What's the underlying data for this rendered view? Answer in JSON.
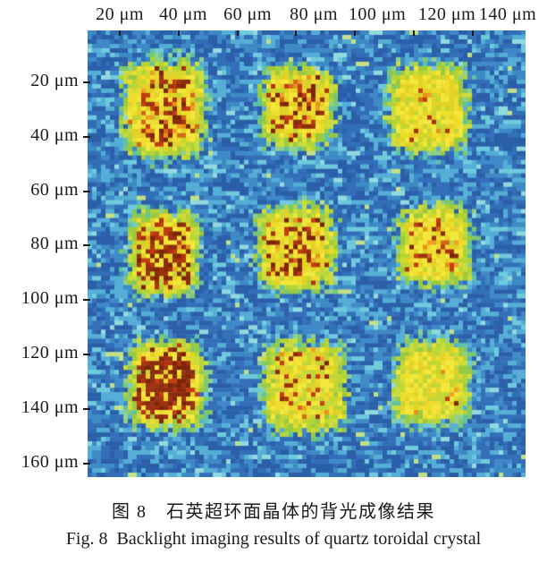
{
  "figure": {
    "caption_zh": "图 8　石英超环面晶体的背光成像结果",
    "caption_en": "Fig. 8  Backlight imaging results of quartz toroidal crystal"
  },
  "chart_data": {
    "type": "heatmap",
    "title": "Backlight imaging results of quartz toroidal crystal",
    "description": "Noisy blue CCD background with a 3x3 array of warm (yellow to dark red) square regions corresponding to toroidal crystal structures",
    "x_axis": {
      "position": "top",
      "unit": "μm",
      "tick_labels": [
        "20 μm",
        "40 μm",
        "60 μm",
        "80 μm",
        "100 μm",
        "120 μm",
        "140 μm"
      ],
      "tick_values_um": [
        20,
        40,
        60,
        80,
        100,
        120,
        140
      ],
      "range_um": [
        9,
        158
      ]
    },
    "y_axis": {
      "position": "left",
      "unit": "μm",
      "tick_labels": [
        "20 μm",
        "40 μm",
        "60 μm",
        "80 μm",
        "100 μm",
        "120 μm",
        "140 μm",
        "160 μm"
      ],
      "tick_values_um": [
        20,
        40,
        60,
        80,
        100,
        120,
        140,
        160
      ],
      "range_um": [
        1,
        165
      ]
    },
    "colormap": "jet-like: blue noise background, yellow blob bodies, orange/red/dark-red hotspots",
    "palette": {
      "background_blues": [
        "#2b5fa9",
        "#336fb8",
        "#3f8ac6",
        "#55aed6",
        "#6fcade",
        "#93dade"
      ],
      "background_weights": [
        0.26,
        0.24,
        0.22,
        0.17,
        0.08,
        0.03
      ],
      "rare_speck": "#c2e087",
      "body_yellows": [
        "#eedd2d",
        "#f3e73b",
        "#e3d226"
      ],
      "mottle_green": "#c2d634",
      "edge_greens": [
        "#b2d437",
        "#9aca40",
        "#ccdc3a"
      ],
      "halo_greens": [
        "#7cc86e",
        "#5fc3a4",
        "#8fd08c"
      ],
      "oranges": [
        "#e8921c",
        "#d2691b",
        "#ef9f24"
      ],
      "reds": [
        "#c43d12",
        "#b03410"
      ],
      "dark_reds": [
        "#8a2c0e",
        "#7c2408",
        "#9c3210"
      ],
      "tick_color": "#1b1b1b",
      "text_color": "#1a1a1a"
    },
    "blobs": [
      {
        "row": 1,
        "col": 1,
        "center_um": [
          35,
          29.5
        ],
        "size_um": [
          27,
          34
        ],
        "speckle": 0.5,
        "dark": 0.45,
        "mottle": 0.1
      },
      {
        "row": 1,
        "col": 2,
        "center_um": [
          80.5,
          29
        ],
        "size_um": [
          24,
          28
        ],
        "speckle": 0.45,
        "dark": 0.45,
        "mottle": 0.1
      },
      {
        "row": 1,
        "col": 3,
        "center_um": [
          125,
          29.5
        ],
        "size_um": [
          26,
          31
        ],
        "speckle": 0.08,
        "dark": 0.15,
        "mottle": 0.15
      },
      {
        "row": 2,
        "col": 1,
        "center_um": [
          35,
          83
        ],
        "size_um": [
          23,
          30
        ],
        "speckle": 0.62,
        "dark": 0.65,
        "mottle": 0.08
      },
      {
        "row": 2,
        "col": 2,
        "center_um": [
          80,
          81
        ],
        "size_um": [
          26,
          30
        ],
        "speckle": 0.45,
        "dark": 0.55,
        "mottle": 0.1
      },
      {
        "row": 2,
        "col": 3,
        "center_um": [
          127,
          80
        ],
        "size_um": [
          24,
          28
        ],
        "speckle": 0.25,
        "dark": 0.4,
        "mottle": 0.12
      },
      {
        "row": 3,
        "col": 1,
        "center_um": [
          36,
          131
        ],
        "size_um": [
          25,
          31
        ],
        "speckle": 0.85,
        "dark": 0.8,
        "mottle": 0.06
      },
      {
        "row": 3,
        "col": 2,
        "center_um": [
          83,
          132
        ],
        "size_um": [
          27,
          32
        ],
        "speckle": 0.16,
        "dark": 0.35,
        "mottle": 0.3
      },
      {
        "row": 3,
        "col": 3,
        "center_um": [
          126,
          130
        ],
        "size_um": [
          24,
          29
        ],
        "speckle": 0.05,
        "dark": 0.12,
        "mottle": 0.28
      }
    ]
  }
}
